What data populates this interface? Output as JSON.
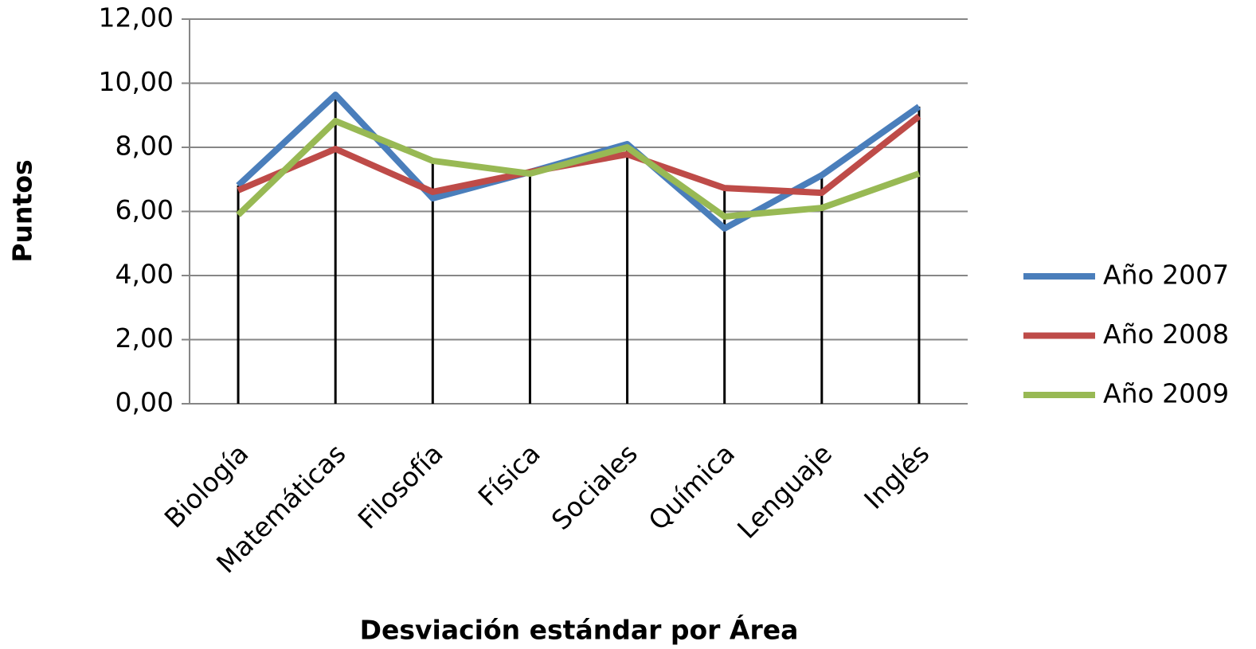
{
  "chart_data": {
    "type": "line",
    "x_label": "Desviación estándar por Área",
    "y_label": "Puntos",
    "categories": [
      "Biología",
      "Matemáticas",
      "Filosofía",
      "Física",
      "Sociales",
      "Química",
      "Lenguaje",
      "Inglés"
    ],
    "series": [
      {
        "name": "Año 2007",
        "color": "#4a7ebb",
        "values": [
          6.81,
          9.64,
          6.41,
          7.23,
          8.1,
          5.47,
          7.13,
          9.27
        ]
      },
      {
        "name": "Año 2008",
        "color": "#be4b48",
        "values": [
          6.66,
          7.95,
          6.61,
          7.23,
          7.78,
          6.73,
          6.58,
          8.97
        ]
      },
      {
        "name": "Año 2009",
        "color": "#98b954",
        "values": [
          5.89,
          8.82,
          7.58,
          7.18,
          8.0,
          5.84,
          6.11,
          7.18
        ]
      }
    ],
    "ylim": [
      0,
      12
    ],
    "yticks": [
      {
        "value": 0,
        "label": "0,00"
      },
      {
        "value": 2,
        "label": "2,00"
      },
      {
        "value": 4,
        "label": "4,00"
      },
      {
        "value": 6,
        "label": "6,00"
      },
      {
        "value": 8,
        "label": "8,00"
      },
      {
        "value": 10,
        "label": "10,00"
      },
      {
        "value": 12,
        "label": "12,00"
      }
    ],
    "grid": true,
    "drop_lines": true,
    "legend": "right"
  }
}
